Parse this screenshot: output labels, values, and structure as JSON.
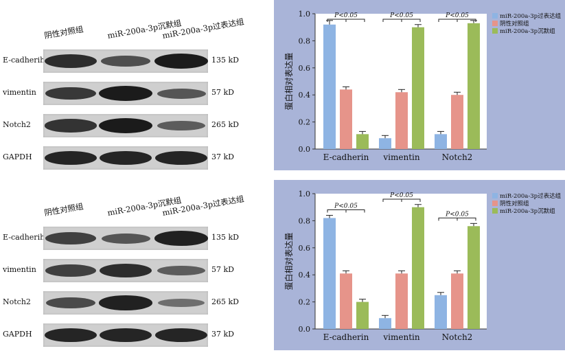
{
  "blots": [
    {
      "lanes": [
        "阴性对照组",
        "miR-200a-3p沉默组",
        "miR-200a-3p过表达组"
      ],
      "rows": [
        {
          "protein": "E-cadherih",
          "size": "135 kD",
          "intensity": [
            0.85,
            0.55,
            1.0
          ]
        },
        {
          "protein": "vimentin",
          "size": "57 kD",
          "intensity": [
            0.75,
            1.0,
            0.5
          ]
        },
        {
          "protein": "Notch2",
          "size": "265 kD",
          "intensity": [
            0.8,
            1.0,
            0.45
          ]
        },
        {
          "protein": "GAPDH",
          "size": "37 kD",
          "intensity": [
            0.9,
            0.9,
            0.9
          ]
        }
      ]
    },
    {
      "lanes": [
        "阴性对照组",
        "miR-200a-3p沉默组",
        "miR-200a-3p过表达组"
      ],
      "rows": [
        {
          "protein": "E-cadherih",
          "size": "135 kD",
          "intensity": [
            0.7,
            0.5,
            0.95
          ]
        },
        {
          "protein": "vimentin",
          "size": "57 kD",
          "intensity": [
            0.7,
            0.85,
            0.45
          ]
        },
        {
          "protein": "Notch2",
          "size": "265 kD",
          "intensity": [
            0.6,
            0.95,
            0.3
          ]
        },
        {
          "protein": "GAPDH",
          "size": "37 kD",
          "intensity": [
            0.9,
            0.9,
            0.9
          ]
        }
      ]
    }
  ],
  "chart_data": [
    {
      "type": "bar",
      "ylabel": "蛋白相对表达量",
      "ylim": [
        0,
        1.0
      ],
      "yticks": [
        "0.0",
        "0.2",
        "0.4",
        "0.6",
        "0.8",
        "1.0"
      ],
      "categories": [
        "E-cadherin",
        "vimentin",
        "Notch2"
      ],
      "series": [
        {
          "name": "miR-200a-3p过表达组",
          "color": "#8eb4e3",
          "values": [
            0.92,
            0.08,
            0.11
          ],
          "errors": [
            0.03,
            0.02,
            0.02
          ]
        },
        {
          "name": "阴性对照组",
          "color": "#e6948a",
          "values": [
            0.44,
            0.42,
            0.4
          ],
          "errors": [
            0.02,
            0.02,
            0.02
          ]
        },
        {
          "name": "miR-200a-3p沉默组",
          "color": "#9bbb59",
          "values": [
            0.11,
            0.9,
            0.93
          ],
          "errors": [
            0.02,
            0.02,
            0.02
          ]
        }
      ],
      "annotations": [
        "P<0.05",
        "P<0.05",
        "P<0.05"
      ],
      "legend": "top-right"
    },
    {
      "type": "bar",
      "ylabel": "蛋白相对表达量",
      "ylim": [
        0,
        1.0
      ],
      "yticks": [
        "0.0",
        "0.2",
        "0.4",
        "0.6",
        "0.8",
        "1.0"
      ],
      "categories": [
        "E-cadherin",
        "vimentin",
        "Notch2"
      ],
      "series": [
        {
          "name": "miR-200a-3p过表达组",
          "color": "#8eb4e3",
          "values": [
            0.82,
            0.08,
            0.25
          ],
          "errors": [
            0.02,
            0.02,
            0.02
          ]
        },
        {
          "name": "阴性对照组",
          "color": "#e6948a",
          "values": [
            0.41,
            0.41,
            0.41
          ],
          "errors": [
            0.02,
            0.02,
            0.02
          ]
        },
        {
          "name": "miR-200a-3p沉默组",
          "color": "#9bbb59",
          "values": [
            0.2,
            0.9,
            0.76
          ],
          "errors": [
            0.02,
            0.02,
            0.02
          ]
        }
      ],
      "annotations": [
        "P<0.05",
        "P<0.05",
        "P<0.05"
      ],
      "legend": "top-right"
    }
  ]
}
